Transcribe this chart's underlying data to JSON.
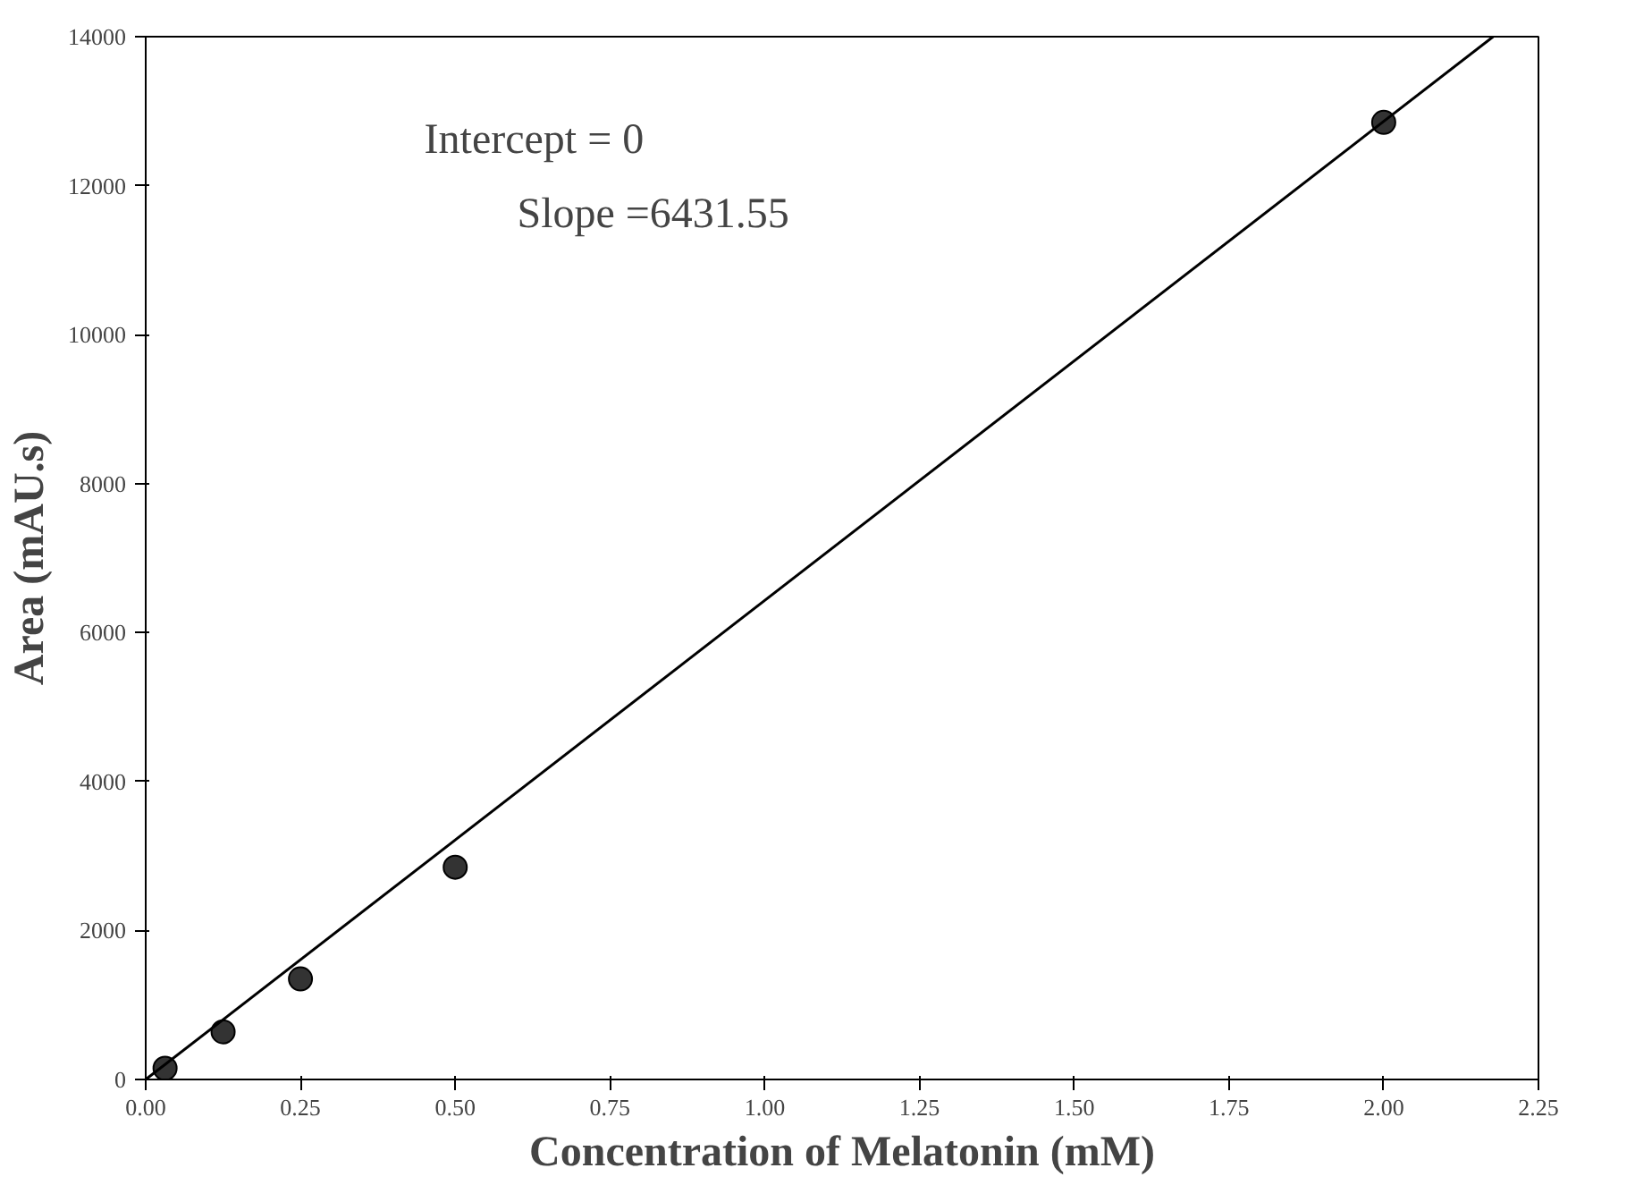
{
  "chart_data": {
    "type": "scatter",
    "xlabel": "Concentration of Melatonin (mM)",
    "ylabel": "Area (mAU.s)",
    "annotations": [
      "Intercept = 0",
      "Slope =6431.55"
    ],
    "series": [
      {
        "color": "#333333",
        "marker": "circle",
        "x": [
          0.03125,
          0.125,
          0.25,
          0.5,
          2.0
        ],
        "values": [
          150,
          640,
          1350,
          2850,
          12850
        ]
      },
      {
        "type": "line",
        "color": "#000000",
        "marker": "none",
        "line_style": "solid",
        "x": [
          0,
          2.1768
        ],
        "values": [
          0,
          14000
        ]
      }
    ],
    "xlim": [
      0,
      2.25
    ],
    "ylim": [
      0,
      14000
    ],
    "xticks": [
      {
        "value": 0,
        "label": "0.00"
      },
      {
        "value": 0.25,
        "label": "0.25"
      },
      {
        "value": 0.5,
        "label": "0.50"
      },
      {
        "value": 0.75,
        "label": "0.75"
      },
      {
        "value": 1,
        "label": "1.00"
      },
      {
        "value": 1.25,
        "label": "1.25"
      },
      {
        "value": 1.5,
        "label": "1.50"
      },
      {
        "value": 1.75,
        "label": "1.75"
      },
      {
        "value": 2,
        "label": "2.00"
      },
      {
        "value": 2.25,
        "label": "2.25"
      }
    ],
    "yticks": [
      0,
      2000,
      4000,
      6000,
      8000,
      10000,
      12000,
      14000
    ],
    "grid": false
  }
}
